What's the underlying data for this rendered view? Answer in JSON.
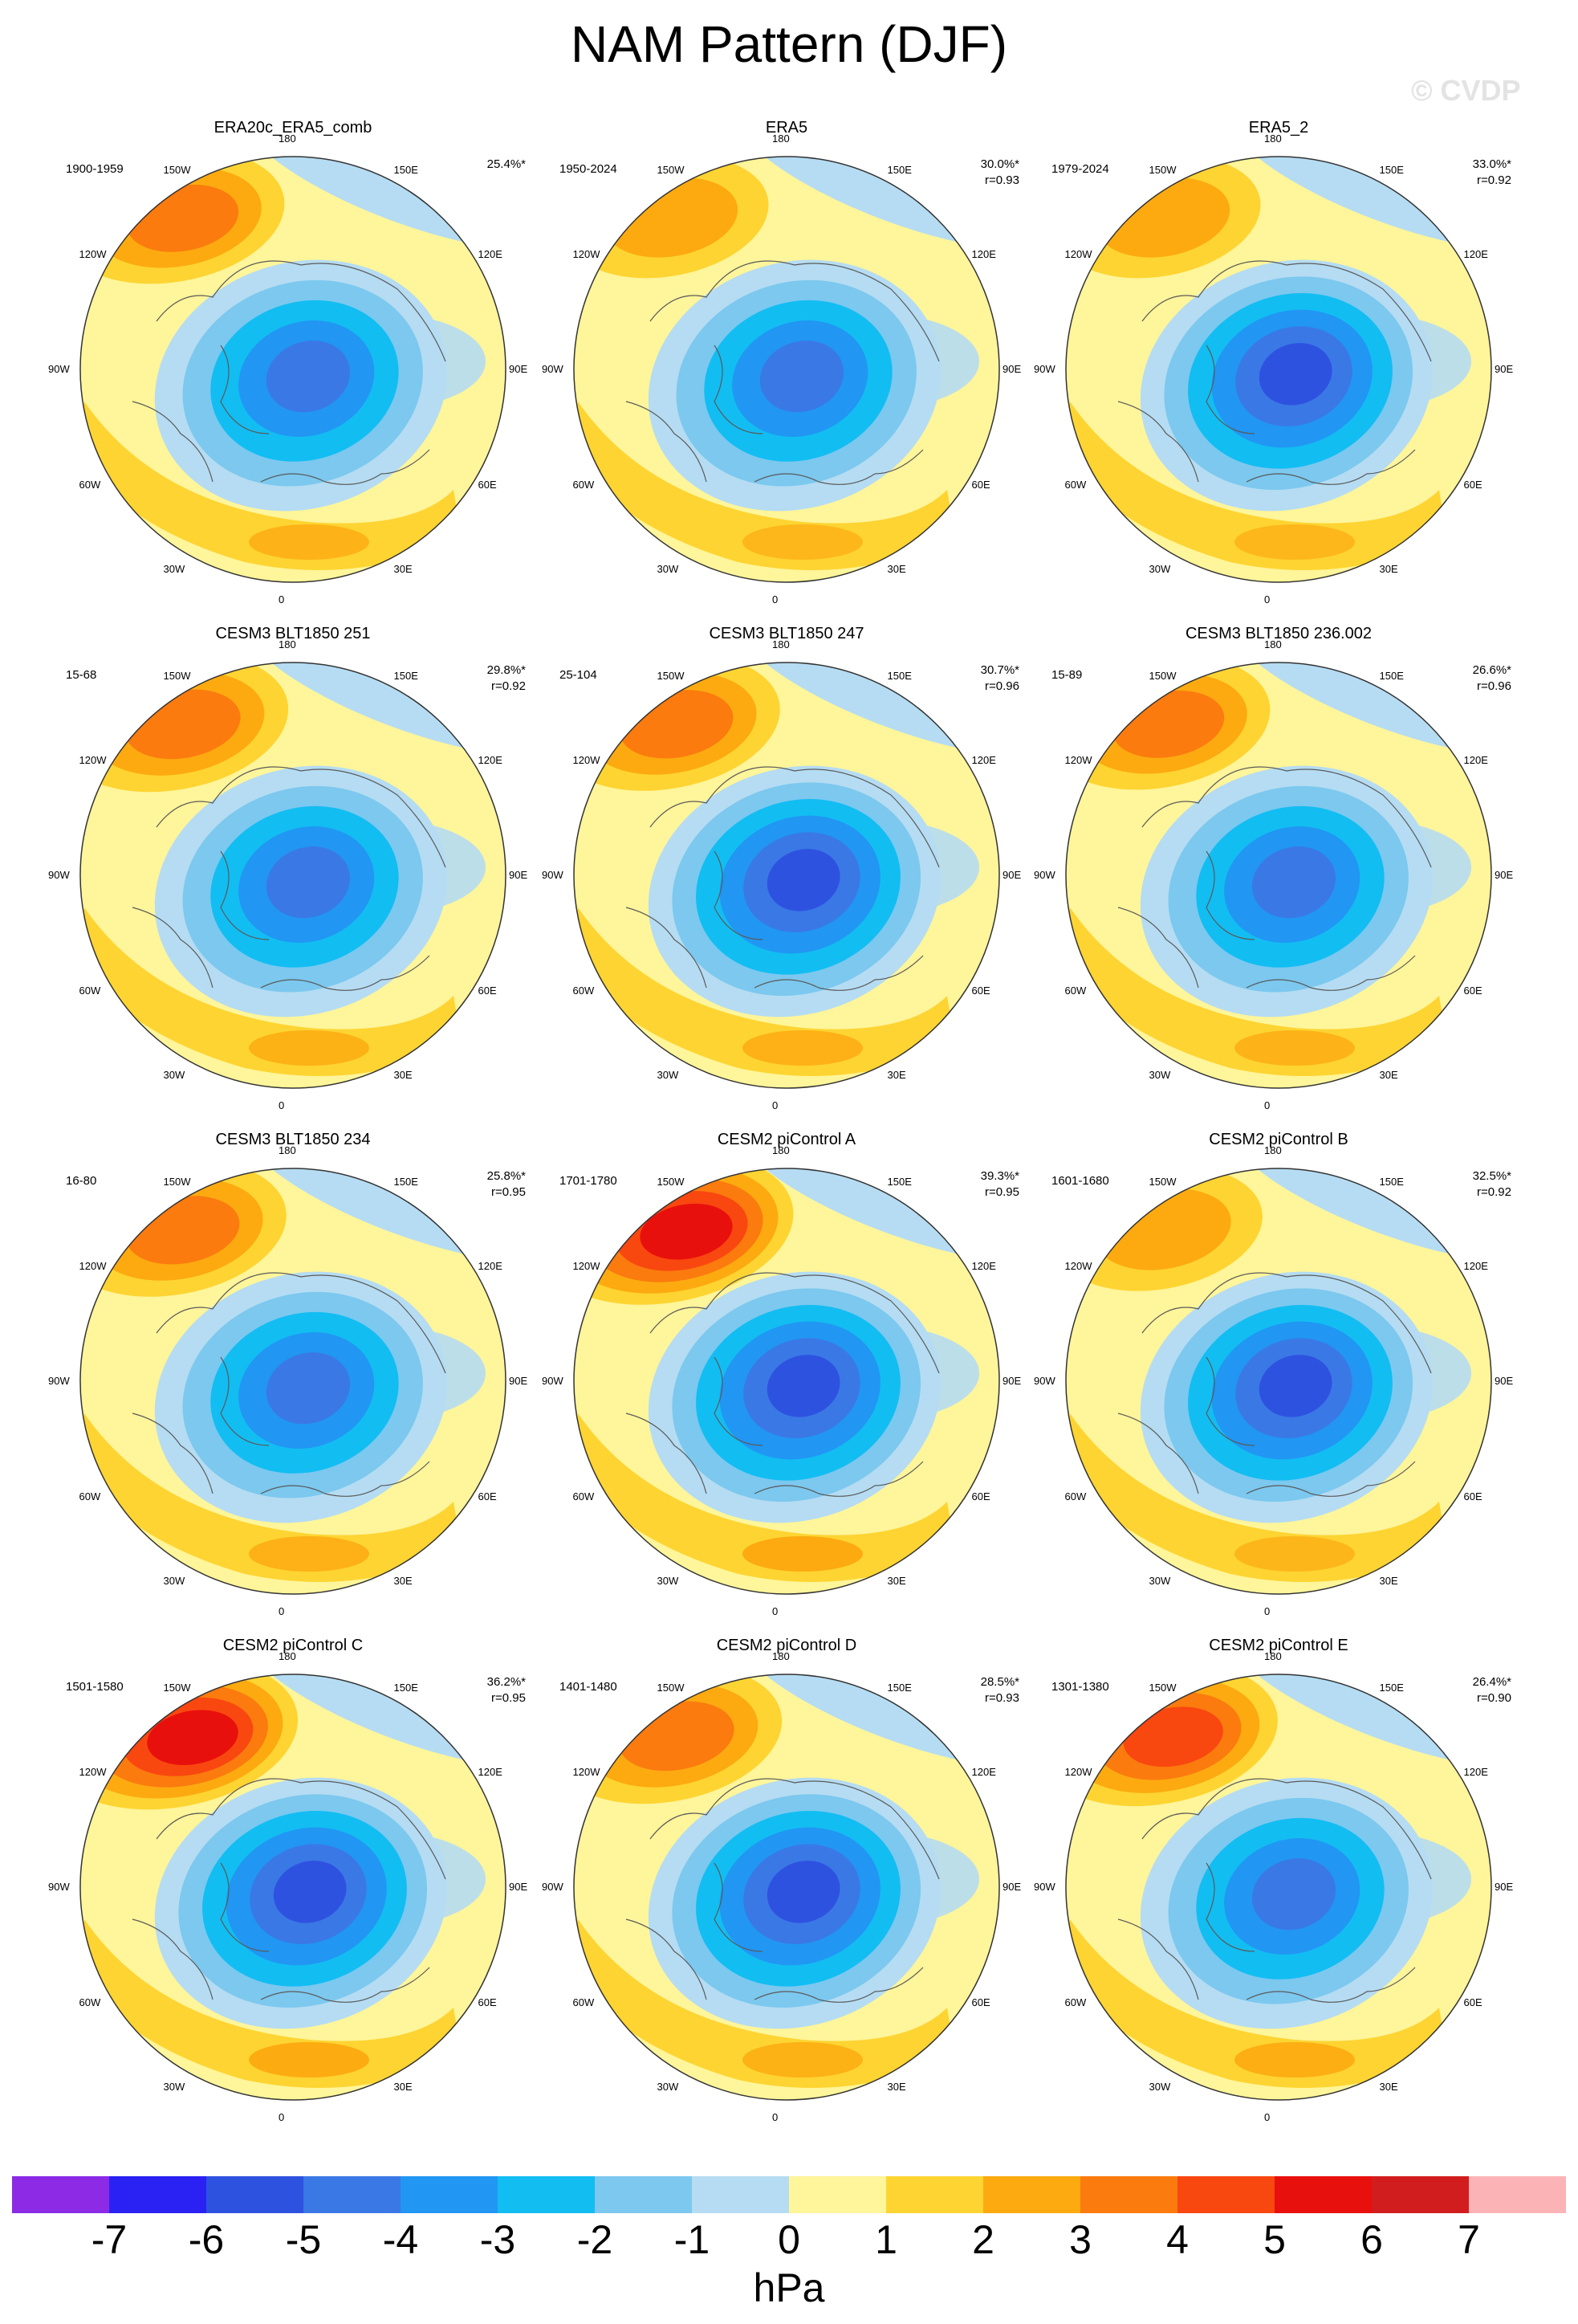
{
  "title": "NAM Pattern (DJF)",
  "watermark": "© CVDP",
  "chart_data": {
    "type": "heatmap",
    "projection": "polar stereographic, Northern Hemisphere",
    "variable": "NAM pattern sea level pressure regression",
    "season": "DJF",
    "units": "hPa",
    "contour_levels": [
      -7,
      -6,
      -5,
      -4,
      -3,
      -2,
      -1,
      0,
      1,
      2,
      3,
      4,
      5,
      6,
      7
    ],
    "colorbar": {
      "tick_labels": [
        "-7",
        "-6",
        "-5",
        "-4",
        "-3",
        "-2",
        "-1",
        "0",
        "1",
        "2",
        "3",
        "4",
        "5",
        "6",
        "7"
      ],
      "colors": [
        "#8c2ae6",
        "#2a22f2",
        "#2e52e0",
        "#3a78e6",
        "#2196f3",
        "#12bdf2",
        "#7cc8ef",
        "#b5dcf2",
        "#fff59a",
        "#fed432",
        "#fcaa10",
        "#fb7b0e",
        "#f94710",
        "#e8100c",
        "#d11d1d",
        "#fcb3b6"
      ],
      "label": "hPa"
    },
    "longitude_labels": [
      "180",
      "150E",
      "120E",
      "90E",
      "60E",
      "30E",
      "0",
      "30W",
      "60W",
      "90W",
      "120W",
      "150W"
    ],
    "panels": [
      {
        "name": "ERA20c_ERA5_comb",
        "period": "1900-1959",
        "pct_var": "25.4%*",
        "r": "",
        "min_level": -5,
        "max_level": 3,
        "high_strength": 0.6
      },
      {
        "name": "ERA5",
        "period": "1950-2024",
        "pct_var": "30.0%*",
        "r": "r=0.93",
        "min_level": -5,
        "max_level": 2,
        "high_strength": 0.35
      },
      {
        "name": "ERA5_2",
        "period": "1979-2024",
        "pct_var": "33.0%*",
        "r": "r=0.92",
        "min_level": -6,
        "max_level": 2,
        "high_strength": 0.35
      },
      {
        "name": "CESM3 BLT1850 251",
        "period": "15-68",
        "pct_var": "29.8%*",
        "r": "r=0.92",
        "min_level": -5,
        "max_level": 3,
        "high_strength": 0.7
      },
      {
        "name": "CESM3 BLT1850 247",
        "period": "25-104",
        "pct_var": "30.7%*",
        "r": "r=0.96",
        "min_level": -6,
        "max_level": 3,
        "high_strength": 0.65
      },
      {
        "name": "CESM3 BLT1850 236.002",
        "period": "15-89",
        "pct_var": "26.6%*",
        "r": "r=0.96",
        "min_level": -5,
        "max_level": 3,
        "high_strength": 0.6
      },
      {
        "name": "CESM3 BLT1850 234",
        "period": "16-80",
        "pct_var": "25.8%*",
        "r": "r=0.95",
        "min_level": -5,
        "max_level": 3,
        "high_strength": 0.65
      },
      {
        "name": "CESM2 piControl A",
        "period": "1701-1780",
        "pct_var": "39.3%*",
        "r": "r=0.95",
        "min_level": -6,
        "max_level": 5,
        "high_strength": 1.0
      },
      {
        "name": "CESM2 piControl B",
        "period": "1601-1680",
        "pct_var": "32.5%*",
        "r": "r=0.92",
        "min_level": -6,
        "max_level": 2,
        "high_strength": 0.4
      },
      {
        "name": "CESM2 piControl C",
        "period": "1501-1580",
        "pct_var": "36.2%*",
        "r": "r=0.95",
        "min_level": -6,
        "max_level": 5,
        "high_strength": 0.95
      },
      {
        "name": "CESM2 piControl D",
        "period": "1401-1480",
        "pct_var": "28.5%*",
        "r": "r=0.93",
        "min_level": -6,
        "max_level": 3,
        "high_strength": 0.7
      },
      {
        "name": "CESM2 piControl E",
        "period": "1301-1380",
        "pct_var": "26.4%*",
        "r": "r=0.90",
        "min_level": -5,
        "max_level": 4,
        "high_strength": 0.8
      }
    ]
  }
}
